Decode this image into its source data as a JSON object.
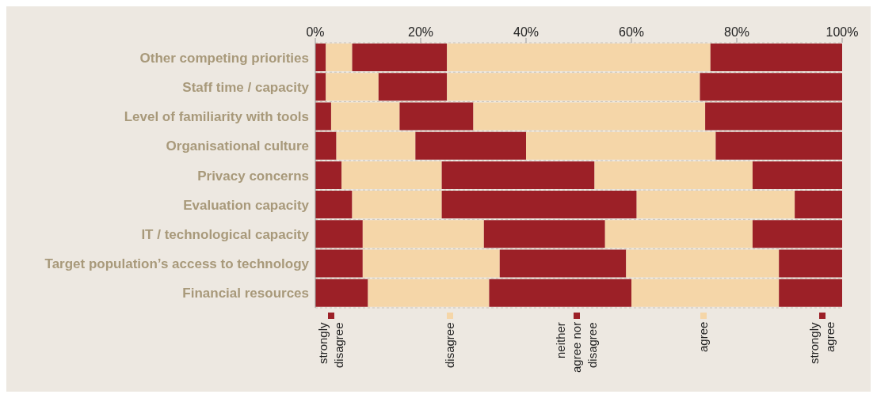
{
  "chart_data": {
    "type": "bar",
    "orientation": "horizontal",
    "stacked": true,
    "categories": [
      "Other competing priorities",
      "Staff time / capacity",
      "Level of familiarity with tools",
      "Organisational culture",
      "Privacy concerns",
      "Evaluation capacity",
      "IT / technological capacity",
      "Target population’s access to technology",
      "Financial resources"
    ],
    "series": [
      {
        "name": "strongly disagree",
        "color": "#9c2027",
        "values": [
          2,
          2,
          3,
          4,
          5,
          7,
          9,
          9,
          10
        ]
      },
      {
        "name": "disagree",
        "color": "#f5d6a8",
        "values": [
          5,
          10,
          13,
          15,
          19,
          17,
          23,
          26,
          23
        ]
      },
      {
        "name": "neither agree nor disagree",
        "color": "#9c2027",
        "values": [
          18,
          13,
          14,
          21,
          29,
          37,
          23,
          24,
          27
        ]
      },
      {
        "name": "agree",
        "color": "#f5d6a8",
        "values": [
          50,
          48,
          44,
          36,
          30,
          30,
          28,
          29,
          28
        ]
      },
      {
        "name": "strongly agree",
        "color": "#9c2027",
        "values": [
          25,
          27,
          26,
          24,
          17,
          9,
          17,
          12,
          12
        ]
      }
    ],
    "xlim": [
      0,
      100
    ],
    "xticks": [
      {
        "value": 0,
        "label": "0%"
      },
      {
        "value": 20,
        "label": "20%"
      },
      {
        "value": 40,
        "label": "40%"
      },
      {
        "value": 60,
        "label": "60%"
      },
      {
        "value": 80,
        "label": "80%"
      },
      {
        "value": 100,
        "label": "100%"
      }
    ],
    "grid": "y",
    "legend": "bottom"
  }
}
